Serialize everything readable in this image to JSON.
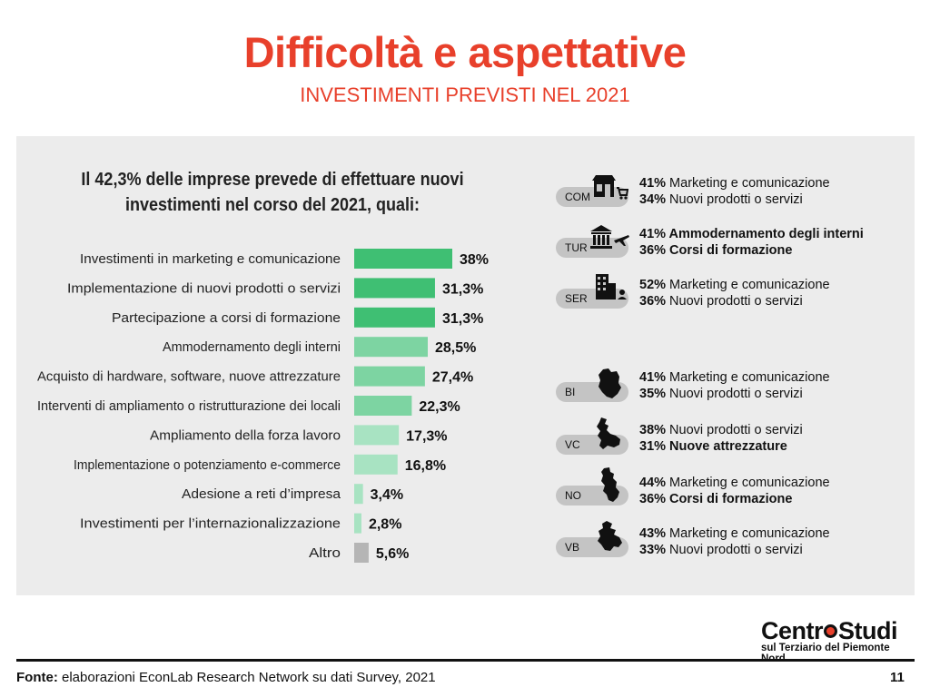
{
  "page": {
    "title": "Difficoltà e aspettative",
    "subtitle": "INVESTIMENTI PREVISTI NEL 2021",
    "intro_line1": "Il 42,3% delle imprese prevede di effettuare nuovi",
    "intro_line2": "investimenti nel corso del 2021, quali:",
    "footer_label": "Fonte:",
    "footer_text": "elaborazioni EconLab Research Network su dati Survey, 2021",
    "page_number": "11",
    "logo_part1": "Centr",
    "logo_part2": "Studi",
    "logo_sub": "sul Terziario del Piemonte Nord"
  },
  "chart_data": {
    "type": "bar",
    "orientation": "horizontal",
    "categories": [
      "Investimenti in marketing e comunicazione",
      "Implementazione di nuovi prodotti o servizi",
      "Partecipazione a corsi di formazione",
      "Ammodernamento degli interni",
      "Acquisto di hardware, software, nuove attrezzature",
      "Interventi di ampliamento o ristrutturazione dei locali",
      "Ampliamento della forza lavoro",
      "Implementazione o potenziamento e-commerce",
      "Adesione a reti d’impresa",
      "Investimenti per l’internazionalizzazione",
      "Altro"
    ],
    "values": [
      38,
      31.3,
      31.3,
      28.5,
      27.4,
      22.3,
      17.3,
      16.8,
      3.4,
      2.8,
      5.6
    ],
    "value_labels": [
      "38%",
      "31,3%",
      "31,3%",
      "28,5%",
      "27,4%",
      "22,3%",
      "17,3%",
      "16,8%",
      "3,4%",
      "2,8%",
      "5,6%"
    ],
    "colors": [
      "#3fbf73",
      "#3fbf73",
      "#3fbf73",
      "#7dd4a2",
      "#7dd4a2",
      "#7dd4a2",
      "#a8e3c2",
      "#a8e3c2",
      "#a8e3c2",
      "#a8e3c2",
      "#b5b5b5"
    ],
    "xlim": [
      0,
      38
    ]
  },
  "sectors": [
    {
      "code": "COM",
      "icon": "shop-cart-icon",
      "line1_pct": "41%",
      "line1_text": " Marketing e comunicazione",
      "line2_pct": "34%",
      "line2_text": " Nuovi prodotti o servizi"
    },
    {
      "code": "TUR",
      "icon": "museum-plane-icon",
      "line1_pct": "41%",
      "line1_text": " Ammodernamento degli interni",
      "line2_pct": "36%",
      "line2_text": " Corsi di formazione"
    },
    {
      "code": "SER",
      "icon": "office-building-icon",
      "line1_pct": "52%",
      "line1_text": " Marketing e comunicazione",
      "line2_pct": "36%",
      "line2_text": " Nuovi prodotti o servizi"
    },
    {
      "code": "BI",
      "icon": "province-map-icon",
      "line1_pct": "41%",
      "line1_text": " Marketing e comunicazione",
      "line2_pct": "35%",
      "line2_text": " Nuovi prodotti o servizi"
    },
    {
      "code": "VC",
      "icon": "province-map-icon",
      "line1_pct": "38%",
      "line1_text": " Nuovi prodotti o servizi",
      "line2_pct": "31%",
      "line2_text": " Nuove attrezzature"
    },
    {
      "code": "NO",
      "icon": "province-map-icon",
      "line1_pct": "44%",
      "line1_text": " Marketing e comunicazione",
      "line2_pct": "36%",
      "line2_text": " Corsi di formazione"
    },
    {
      "code": "VB",
      "icon": "province-map-icon",
      "line1_pct": "43%",
      "line1_text": " Marketing e comunicazione",
      "line2_pct": "33%",
      "line2_text": " Nuovi prodotti o servizi"
    }
  ]
}
